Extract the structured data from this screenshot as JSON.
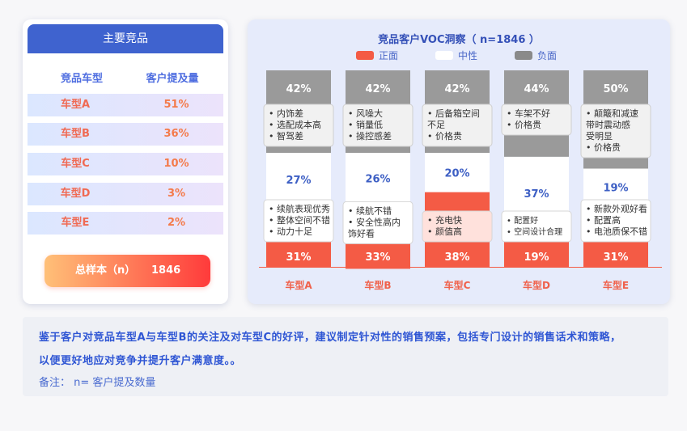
{
  "left_panel": {
    "title": "主要竞品",
    "col_model": "竞品车型",
    "col_reach": "客户提及量",
    "rows": [
      {
        "model": "车型A",
        "share": "51%"
      },
      {
        "model": "车型B",
        "share": "36%"
      },
      {
        "model": "车型C",
        "share": "10%"
      },
      {
        "model": "车型D",
        "share": "3%"
      },
      {
        "model": "车型E",
        "share": "2%"
      }
    ],
    "total_label": "总样本（n）",
    "total_value": "1846"
  },
  "chart_data": {
    "type": "bar",
    "stacked": true,
    "title": "竞品客户VOC洞察（ n=1846 ）",
    "categories": [
      "车型A",
      "车型B",
      "车型C",
      "车型D",
      "车型E"
    ],
    "legend": [
      {
        "name": "正面",
        "color": "#f45b45"
      },
      {
        "name": "中性",
        "color": "#ffffff"
      },
      {
        "name": "负面",
        "color": "#9a9a9a"
      }
    ],
    "series": [
      {
        "name": "负面",
        "values": [
          42,
          42,
          42,
          44,
          50
        ]
      },
      {
        "name": "中性",
        "values": [
          27,
          26,
          20,
          37,
          19
        ]
      },
      {
        "name": "正面",
        "values": [
          31,
          33,
          38,
          19,
          31
        ]
      }
    ],
    "value_labels": {
      "负面": [
        "42%",
        "42%",
        "42%",
        "44%",
        "50%"
      ],
      "中性": [
        "27%",
        "26%",
        "20%",
        "37%",
        "19%"
      ],
      "正面": [
        "31%",
        "33%",
        "38%",
        "19%",
        "31%"
      ]
    },
    "negative_notes": [
      [
        "• 内饰差",
        "• 选配成本高",
        "• 智驾差"
      ],
      [
        "• 风噪大",
        "• 销量低",
        "• 操控感差"
      ],
      [
        "• 后备箱空间",
        "   不足",
        "• 价格贵"
      ],
      [
        "• 车架不好",
        "• 价格贵"
      ],
      [
        "• 颠簸和减速",
        "   带时震动感",
        "   受明显",
        "• 价格贵"
      ]
    ],
    "positive_notes": [
      [
        "• 续航表现优秀",
        "• 整体空间不错",
        "• 动力十足"
      ],
      [
        "• 续航不错",
        "• 安全性高内",
        "   饰好看"
      ],
      [
        "• 充电快",
        "• 颜值高"
      ],
      [
        "• 配置好",
        "• 空间设计合理"
      ],
      [
        "• 新款外观好看",
        "• 配置高",
        "• 电池质保不错"
      ]
    ],
    "colors": {
      "positive": "#f45b45",
      "neutral": "#ffffff",
      "negative": "#9a9a9a",
      "category_label": "#f0614b",
      "neutral_label": "#3d5fc4"
    }
  },
  "note": {
    "line1": "鉴于客户对竞品车型A与车型B的关注及对车型C的好评，建议制定针对性的销售预案，包括专门设计的销售话术和策略，",
    "line2": "以便更好地应对竞争并提升客户满意度。。",
    "remark": "备注： n= 客户提及数量"
  }
}
